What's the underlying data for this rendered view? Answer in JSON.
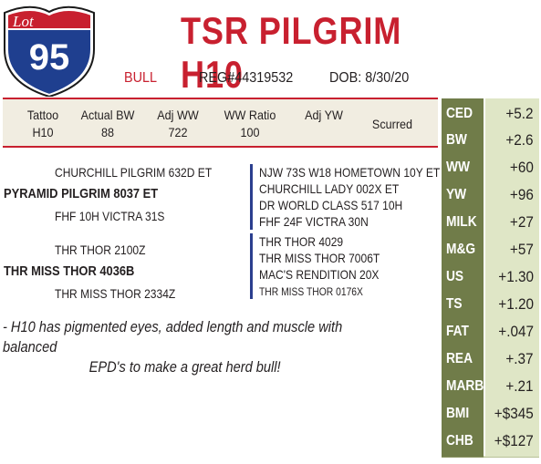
{
  "lot": {
    "word": "Lot",
    "number": "95",
    "colors": {
      "shield_blue": "#1f3f8f",
      "shield_red": "#c8202f"
    }
  },
  "header": {
    "title": "TSR PILGRIM H10",
    "sex": "BULL",
    "reg": "REG#44319532",
    "dob": "DOB: 8/30/20"
  },
  "performance": [
    {
      "label": "Tattoo",
      "value": "H10"
    },
    {
      "label": "Actual BW",
      "value": "88"
    },
    {
      "label": "Adj WW",
      "value": "722"
    },
    {
      "label": "WW Ratio",
      "value": "100"
    },
    {
      "label": "Adj YW",
      "value": ""
    },
    {
      "label": "Scurred",
      "value": ""
    }
  ],
  "pedigree": {
    "sire": "PYRAMID PILGRIM 8037 ET",
    "sire_sire": "CHURCHILL PILGRIM 632D ET",
    "sire_dam": "FHF 10H VICTRA 31S",
    "dam": "THR MISS THOR 4036B",
    "dam_sire": "THR THOR 2100Z",
    "dam_dam": "THR MISS THOR 2334Z",
    "ss_sire": "NJW 73S W18 HOMETOWN 10Y ET",
    "ss_dam": "CHURCHILL LADY 002X ET",
    "sd_sire": "DR WORLD CLASS 517 10H",
    "sd_dam": "FHF 24F VICTRA 30N",
    "ds_sire": "THR THOR 4029",
    "ds_dam": "THR MISS THOR 7006T",
    "dd_sire": "MAC'S RENDITION 20X",
    "dd_dam": "THR MISS THOR 0176X"
  },
  "comment": {
    "line1": "- H10 has pigmented eyes, added length and muscle with balanced",
    "line2": "EPD's to make a great herd bull!"
  },
  "epds": [
    {
      "label": "CED",
      "value": "+5.2"
    },
    {
      "label": "BW",
      "value": "+2.6"
    },
    {
      "label": "WW",
      "value": "+60"
    },
    {
      "label": "YW",
      "value": "+96"
    },
    {
      "label": "MILK",
      "value": "+27"
    },
    {
      "label": "M&G",
      "value": "+57"
    },
    {
      "label": "US",
      "value": "+1.30"
    },
    {
      "label": "TS",
      "value": "+1.20"
    },
    {
      "label": "FAT",
      "value": "+.047"
    },
    {
      "label": "REA",
      "value": "+.37"
    },
    {
      "label": "MARB",
      "value": "+.21"
    },
    {
      "label": "BMI",
      "value": "+$345"
    },
    {
      "label": "CHB",
      "value": "+$127"
    }
  ]
}
